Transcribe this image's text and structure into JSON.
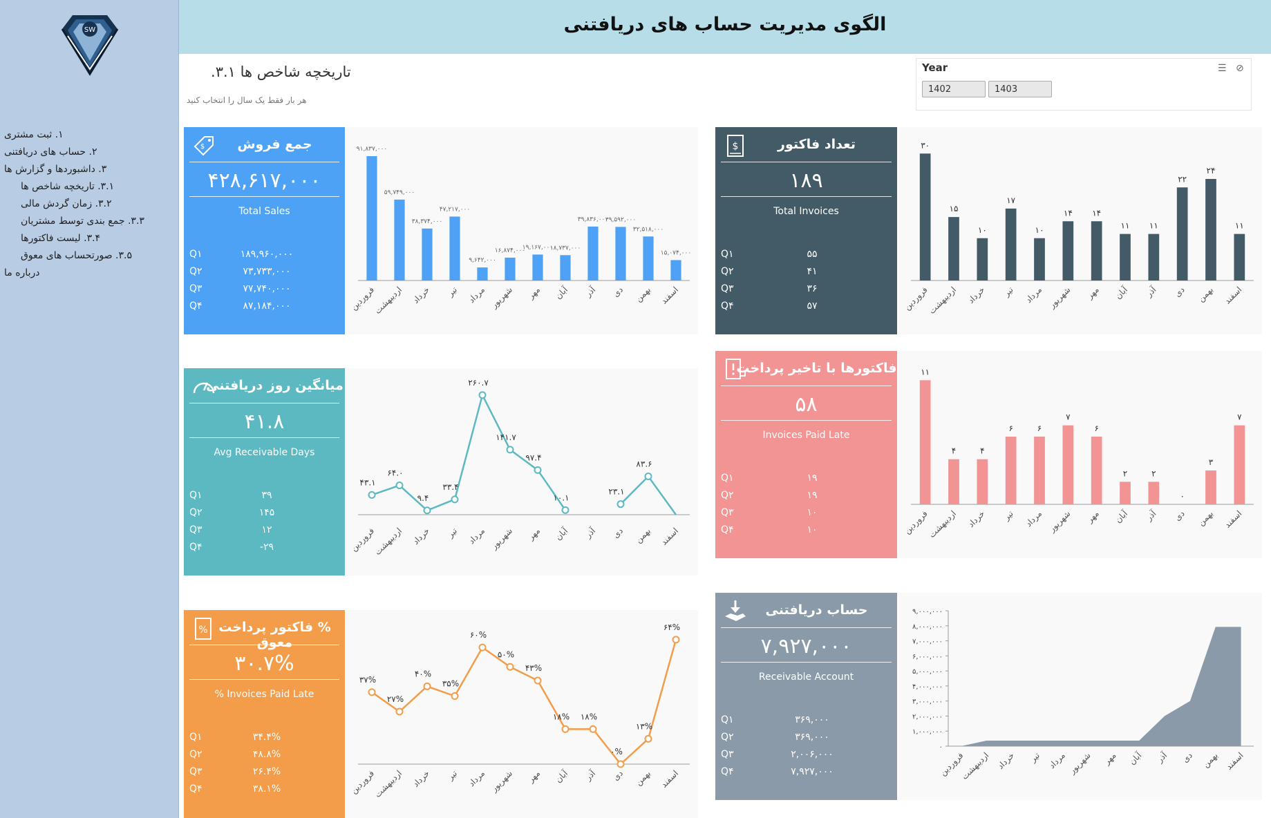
{
  "header": {
    "title": "الگوی مدیریت حساب های دریافتنی"
  },
  "logo": {
    "text": "SW"
  },
  "page": {
    "title": "تاریخچه شاخص ها ۳.۱.",
    "subtitle": "هر بار فقط یک سال را انتخاب کنید"
  },
  "slicer": {
    "title": "Year",
    "options": [
      "1402",
      "1403"
    ]
  },
  "nav": {
    "items": [
      {
        "label": "۱. ثبت مشتری",
        "level": 0
      },
      {
        "label": "۲. حساب های دریافتنی",
        "level": 0
      },
      {
        "label": "۳. داشبوردها و گزارش ها",
        "level": 0
      },
      {
        "label": "۳.۱. تاریخچه شاخص ها",
        "level": 1
      },
      {
        "label": "۳.۲. زمان گردش مالی",
        "level": 1
      },
      {
        "label": "۳.۳. جمع بندی توسط مشتریان",
        "level": 1
      },
      {
        "label": "۳.۴. لیست فاکتورها",
        "level": 1
      },
      {
        "label": "۳.۵. صورتحساب های معوق",
        "level": 1
      },
      {
        "label": "درباره ما",
        "level": 0
      }
    ]
  },
  "colors": {
    "blue": "#4ea2f5",
    "dark": "#435a67",
    "teal": "#5cb9c2",
    "pink": "#f29494",
    "orange": "#f39c49",
    "gray": "#8a9aa8"
  },
  "quarters": [
    "Q۱",
    "Q۲",
    "Q۳",
    "Q۴"
  ],
  "kpis": {
    "sales": {
      "title": "جمع فروش",
      "value": "۴۲۸,۶۱۷,۰۰۰",
      "subtitle": "Total Sales",
      "icon": "price-tag-icon",
      "q": [
        "۱۸۹,۹۶۰,۰۰۰",
        "۷۳,۷۳۳,۰۰۰",
        "۷۷,۷۴۰,۰۰۰",
        "۸۷,۱۸۴,۰۰۰"
      ]
    },
    "invoices": {
      "title": "تعداد فاکتور",
      "value": "۱۸۹",
      "subtitle": "Total Invoices",
      "icon": "invoice-dollar-icon",
      "q": [
        "۵۵",
        "۴۱",
        "۳۶",
        "۵۷"
      ]
    },
    "days": {
      "title": "میانگین روز دریافتنی",
      "value": "۴۱.۸",
      "subtitle": "Avg Receivable Days",
      "icon": "speedometer-icon",
      "q": [
        "۳۹",
        "۱۴۵",
        "۱۲",
        "-۲۹"
      ]
    },
    "late": {
      "title": "فاکتورها با تاخیر پرداخت",
      "value": "۵۸",
      "subtitle": "Invoices Paid Late",
      "icon": "late-invoice-icon",
      "q": [
        "۱۹",
        "۱۹",
        "۱۰",
        "۱۰"
      ]
    },
    "latepct": {
      "title": "% فاکتور پرداخت معوق",
      "value": "۳۰.۷%",
      "subtitle": "% Invoices Paid Late",
      "icon": "percent-doc-icon",
      "q": [
        "۳۴.۴%",
        "۴۸.۸%",
        "۲۶.۴%",
        "۳۸.۱%"
      ]
    },
    "receivable": {
      "title": "حساب دریافتنی",
      "value": "۷,۹۲۷,۰۰۰",
      "subtitle": "Receivable Account",
      "icon": "hand-download-icon",
      "q": [
        "۳۶۹,۰۰۰",
        "۳۶۹,۰۰۰",
        "۲,۰۰۶,۰۰۰",
        "۷,۹۲۷,۰۰۰"
      ]
    }
  },
  "chart_data": [
    {
      "id": "sales",
      "type": "bar",
      "color": "#4ea2f5",
      "categories": [
        "فروردین",
        "اردیبهشت",
        "خرداد",
        "تیر",
        "مرداد",
        "شهریور",
        "مهر",
        "آبان",
        "آذر",
        "دی",
        "بهمن",
        "اسفند"
      ],
      "values": [
        91837000,
        59749000,
        38374000,
        47217000,
        9642000,
        16874000,
        19167000,
        18737000,
        39836000,
        39592000,
        32518000,
        15074000
      ],
      "labels": [
        "۹۱,۸۳۷,۰۰۰",
        "۵۹,۷۴۹,۰۰۰",
        "۳۸,۳۷۴,۰۰۰",
        "۴۷,۲۱۷,۰۰۰",
        "۹,۶۴۲,۰۰۰",
        "۱۶,۸۷۴,۰۰۰",
        "۱۹,۱۶۷,۰۰۰",
        "۱۸,۷۳۷,۰۰۰",
        "۳۹,۸۳۶,۰۰۰",
        "۳۹,۵۹۲,۰۰۰",
        "۳۲,۵۱۸,۰۰۰",
        "۱۵,۰۷۴,۰۰۰"
      ],
      "ylim": [
        0,
        100000000
      ]
    },
    {
      "id": "invoices",
      "type": "bar",
      "color": "#435a67",
      "categories": [
        "فروردین",
        "اردیبهشت",
        "خرداد",
        "تیر",
        "مرداد",
        "شهریور",
        "مهر",
        "آبان",
        "آذر",
        "دی",
        "بهمن",
        "اسفند"
      ],
      "values": [
        30,
        15,
        10,
        17,
        10,
        14,
        14,
        11,
        11,
        22,
        24,
        11
      ],
      "labels": [
        "۳۰",
        "۱۵",
        "۱۰",
        "۱۷",
        "۱۰",
        "۱۴",
        "۱۴",
        "۱۱",
        "۱۱",
        "۲۲",
        "۲۴",
        "۱۱"
      ],
      "ylim": [
        0,
        32
      ]
    },
    {
      "id": "days",
      "type": "line",
      "color": "#5cb9c2",
      "categories": [
        "فروردین",
        "اردیبهشت",
        "خرداد",
        "تیر",
        "مرداد",
        "شهریور",
        "مهر",
        "آبان",
        "آذر",
        "دی",
        "بهمن",
        "اسفند"
      ],
      "values": [
        43.1,
        64.0,
        9.4,
        33.4,
        260.7,
        141.7,
        97.4,
        10.1,
        null,
        23.1,
        83.6,
        -40
      ],
      "labels": [
        "۴۳.۱",
        "۶۴.۰",
        "۹.۴",
        "۳۳.۴",
        "۲۶۰.۷",
        "۱۴۱.۷",
        "۹۷.۴",
        "۱۰.۱",
        "",
        "۲۳.۱",
        "۸۳.۶",
        ""
      ],
      "ylim": [
        -15,
        280
      ]
    },
    {
      "id": "late",
      "type": "bar",
      "color": "#f29494",
      "categories": [
        "فروردین",
        "اردیبهشت",
        "خرداد",
        "تیر",
        "مرداد",
        "شهریور",
        "مهر",
        "آبان",
        "آذر",
        "دی",
        "بهمن",
        "اسفند"
      ],
      "values": [
        11,
        4,
        4,
        6,
        6,
        7,
        6,
        2,
        2,
        0,
        3,
        7
      ],
      "labels": [
        "۱۱",
        "۴",
        "۴",
        "۶",
        "۶",
        "۷",
        "۶",
        "۲",
        "۲",
        "۰",
        "۳",
        "۷"
      ],
      "ylim": [
        0,
        12
      ]
    },
    {
      "id": "latepct",
      "type": "line",
      "color": "#f39c49",
      "categories": [
        "فروردین",
        "اردیبهشت",
        "خرداد",
        "تیر",
        "مرداد",
        "شهریور",
        "مهر",
        "آبان",
        "آذر",
        "دی",
        "بهمن",
        "اسفند"
      ],
      "values": [
        37,
        27,
        40,
        35,
        60,
        50,
        43,
        18,
        18,
        0,
        13,
        64
      ],
      "labels": [
        "۳۷%",
        "۲۷%",
        "۴۰%",
        "۳۵%",
        "۶۰%",
        "۵۰%",
        "۴۳%",
        "۱۸%",
        "۱۸%",
        "۰%",
        "۱۳%",
        "۶۴%"
      ],
      "ylim": [
        0,
        70
      ]
    },
    {
      "id": "receivable",
      "type": "area",
      "color": "#8a9aa8",
      "categories": [
        "فروردین",
        "اردیبهشت",
        "خرداد",
        "تیر",
        "مرداد",
        "شهریور",
        "مهر",
        "آبان",
        "آذر",
        "دی",
        "بهمن",
        "اسفند"
      ],
      "values": [
        0,
        369000,
        369000,
        369000,
        369000,
        369000,
        369000,
        369000,
        2006000,
        3000000,
        7927000,
        7927000
      ],
      "ylim": [
        0,
        9000000
      ],
      "yticks": [
        "۰",
        "۱,۰۰۰,۰۰۰",
        "۲,۰۰۰,۰۰۰",
        "۳,۰۰۰,۰۰۰",
        "۴,۰۰۰,۰۰۰",
        "۵,۰۰۰,۰۰۰",
        "۶,۰۰۰,۰۰۰",
        "۷,۰۰۰,۰۰۰",
        "۸,۰۰۰,۰۰۰",
        "۹,۰۰۰,۰۰۰"
      ]
    }
  ]
}
